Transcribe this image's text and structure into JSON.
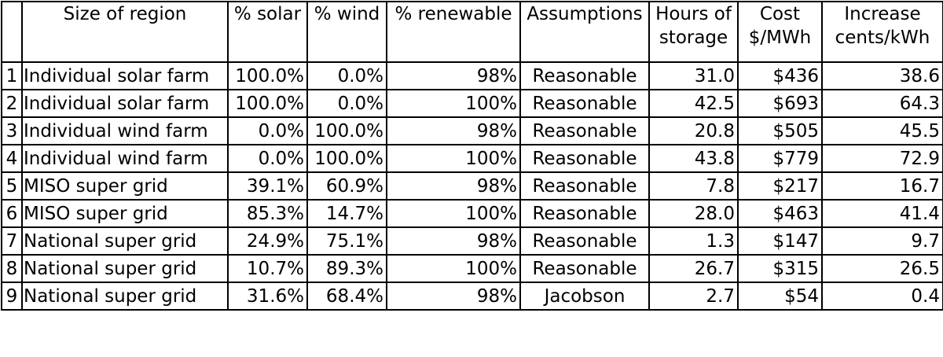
{
  "table": {
    "headers": [
      {
        "line1": "",
        "line2": ""
      },
      {
        "line1": "Size of region",
        "line2": ""
      },
      {
        "line1": "% solar",
        "line2": ""
      },
      {
        "line1": "% wind",
        "line2": ""
      },
      {
        "line1": "% renewable",
        "line2": ""
      },
      {
        "line1": "Assumptions",
        "line2": ""
      },
      {
        "line1": "Hours of",
        "line2": "storage"
      },
      {
        "line1": "Cost",
        "line2": "$/MWh"
      },
      {
        "line1": "Increase",
        "line2": "cents/kWh"
      }
    ],
    "rows": [
      {
        "idx": "1",
        "region": "Individual solar farm",
        "solar": "100.0%",
        "wind": "0.0%",
        "renewable": "98%",
        "assumptions": "Reasonable",
        "storage": "31.0",
        "cost": "$436",
        "increase": "38.6"
      },
      {
        "idx": "2",
        "region": "Individual solar farm",
        "solar": "100.0%",
        "wind": "0.0%",
        "renewable": "100%",
        "assumptions": "Reasonable",
        "storage": "42.5",
        "cost": "$693",
        "increase": "64.3"
      },
      {
        "idx": "3",
        "region": "Individual wind farm",
        "solar": "0.0%",
        "wind": "100.0%",
        "renewable": "98%",
        "assumptions": "Reasonable",
        "storage": "20.8",
        "cost": "$505",
        "increase": "45.5"
      },
      {
        "idx": "4",
        "region": "Individual wind farm",
        "solar": "0.0%",
        "wind": "100.0%",
        "renewable": "100%",
        "assumptions": "Reasonable",
        "storage": "43.8",
        "cost": "$779",
        "increase": "72.9"
      },
      {
        "idx": "5",
        "region": "MISO super grid",
        "solar": "39.1%",
        "wind": "60.9%",
        "renewable": "98%",
        "assumptions": "Reasonable",
        "storage": "7.8",
        "cost": "$217",
        "increase": "16.7"
      },
      {
        "idx": "6",
        "region": "MISO super grid",
        "solar": "85.3%",
        "wind": "14.7%",
        "renewable": "100%",
        "assumptions": "Reasonable",
        "storage": "28.0",
        "cost": "$463",
        "increase": "41.4"
      },
      {
        "idx": "7",
        "region": "National super grid",
        "solar": "24.9%",
        "wind": "75.1%",
        "renewable": "98%",
        "assumptions": "Reasonable",
        "storage": "1.3",
        "cost": "$147",
        "increase": "9.7"
      },
      {
        "idx": "8",
        "region": "National super grid",
        "solar": "10.7%",
        "wind": "89.3%",
        "renewable": "100%",
        "assumptions": "Reasonable",
        "storage": "26.7",
        "cost": "$315",
        "increase": "26.5"
      },
      {
        "idx": "9",
        "region": "National super grid",
        "solar": "31.6%",
        "wind": "68.4%",
        "renewable": "98%",
        "assumptions": "Jacobson",
        "storage": "2.7",
        "cost": "$54",
        "increase": "0.4"
      }
    ]
  }
}
